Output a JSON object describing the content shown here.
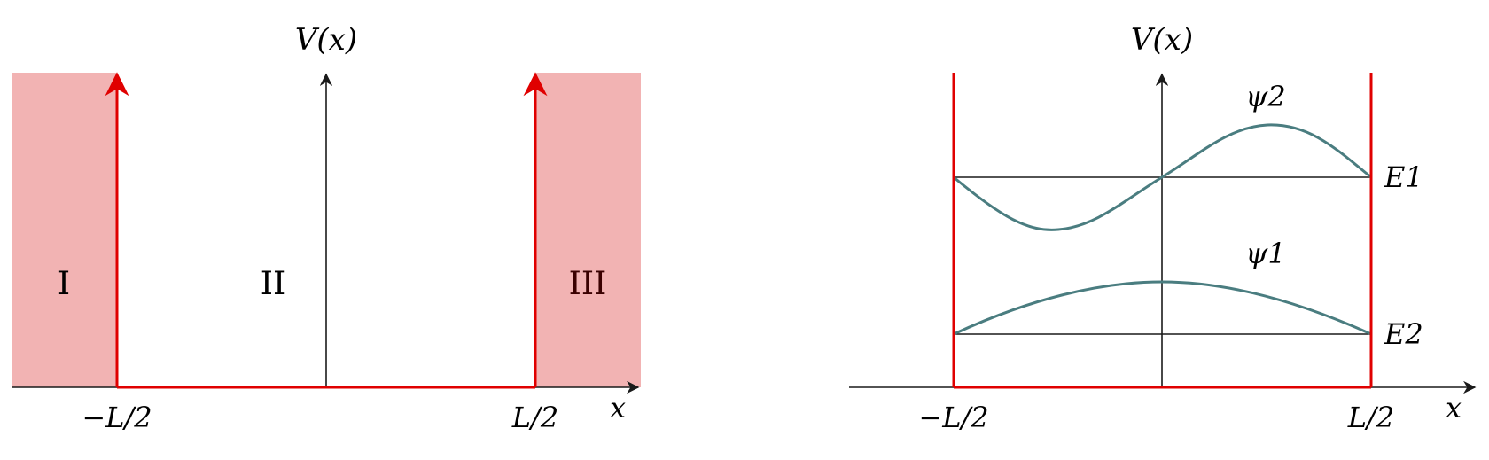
{
  "left_panel": {
    "axis_label_y": "V(x)",
    "axis_label_x": "x",
    "tick_left": "−L/2",
    "tick_right": "L/2",
    "region_labels": [
      "I",
      "II",
      "III"
    ]
  },
  "right_panel": {
    "axis_label_y": "V(x)",
    "axis_label_x": "x",
    "tick_left": "−L/2",
    "tick_right": "L/2",
    "wavefunction_upper_label": "ψ2",
    "wavefunction_lower_label": "ψ1",
    "energy_upper_label": "E1",
    "energy_lower_label": "E2"
  },
  "colors": {
    "wall": "#e00000",
    "region_fill": "#f2b3b3",
    "wavefunction": "#4a7d80",
    "axis": "#1a1a1a"
  }
}
